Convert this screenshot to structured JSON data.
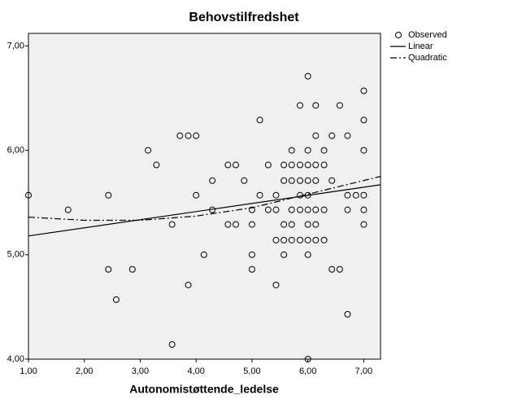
{
  "chart_data": {
    "type": "scatter",
    "title": "Behovstilfredshet",
    "x_label": "Autonomistøttende_ledelse",
    "xlim": [
      1,
      7.3
    ],
    "ylim": [
      4,
      7.12
    ],
    "xticks": [
      {
        "value": 1,
        "label": "1,00"
      },
      {
        "value": 2,
        "label": "2,00"
      },
      {
        "value": 3,
        "label": "3,00"
      },
      {
        "value": 4,
        "label": "4,00"
      },
      {
        "value": 5,
        "label": "5,00"
      },
      {
        "value": 6,
        "label": "6,00"
      },
      {
        "value": 7,
        "label": "7,00"
      }
    ],
    "yticks": [
      {
        "value": 4,
        "label": "4,00"
      },
      {
        "value": 5,
        "label": "5,00"
      },
      {
        "value": 6,
        "label": "6,00"
      },
      {
        "value": 7,
        "label": "7,00"
      }
    ],
    "plot_background": "#f0f0f0",
    "legend": "right",
    "series": [
      {
        "name": "Observed",
        "type": "scatter",
        "color": "#000000",
        "x": [
          1.0,
          1.71,
          2.43,
          2.43,
          2.57,
          2.86,
          3.14,
          3.29,
          3.71,
          3.86,
          4.0,
          4.0,
          3.57,
          3.57,
          3.86,
          4.14,
          4.29,
          4.29,
          4.57,
          4.71,
          4.57,
          4.71,
          4.86,
          5.0,
          5.0,
          5.0,
          5.0,
          5.14,
          5.14,
          5.29,
          5.29,
          5.43,
          5.43,
          5.43,
          5.43,
          5.57,
          5.57,
          5.57,
          5.57,
          5.57,
          5.71,
          5.71,
          5.71,
          5.71,
          5.71,
          5.71,
          5.86,
          5.86,
          5.86,
          5.86,
          5.86,
          5.86,
          6.0,
          6.0,
          6.0,
          6.0,
          6.0,
          6.0,
          6.0,
          6.0,
          6.0,
          6.0,
          6.14,
          6.14,
          6.14,
          6.14,
          6.14,
          6.14,
          6.14,
          6.29,
          6.29,
          6.29,
          6.29,
          6.43,
          6.43,
          6.43,
          6.57,
          6.57,
          6.71,
          6.71,
          6.71,
          6.71,
          6.86,
          7.0,
          7.0,
          7.0,
          7.0,
          7.0,
          7.0
        ],
        "values": [
          5.57,
          5.43,
          5.57,
          4.86,
          4.57,
          4.86,
          6.0,
          5.86,
          6.14,
          6.14,
          6.14,
          5.57,
          5.29,
          4.14,
          4.71,
          5.0,
          5.71,
          5.43,
          5.86,
          5.86,
          5.29,
          5.29,
          5.71,
          5.43,
          5.29,
          5.0,
          4.86,
          6.29,
          5.57,
          5.86,
          5.43,
          5.57,
          5.43,
          5.14,
          4.71,
          5.86,
          5.71,
          5.29,
          5.14,
          5.0,
          6.0,
          5.86,
          5.71,
          5.43,
          5.29,
          5.14,
          6.43,
          5.86,
          5.71,
          5.57,
          5.43,
          5.14,
          6.71,
          6.0,
          5.86,
          5.71,
          5.57,
          5.43,
          5.29,
          5.14,
          5.0,
          4.0,
          6.43,
          6.14,
          5.86,
          5.71,
          5.43,
          5.29,
          5.14,
          6.0,
          5.86,
          5.43,
          5.14,
          6.14,
          5.71,
          4.86,
          6.43,
          4.86,
          6.14,
          5.57,
          5.43,
          4.43,
          5.57,
          6.57,
          6.29,
          6.0,
          5.57,
          5.43,
          5.29
        ]
      },
      {
        "name": "Linear",
        "type": "line",
        "line_style": "solid",
        "color": "#000000",
        "x": [
          1,
          7.3
        ],
        "values": [
          5.18,
          5.67
        ]
      },
      {
        "name": "Quadratic",
        "type": "line",
        "line_style": "dashdot",
        "color": "#000000",
        "x": [
          1,
          2,
          3,
          4,
          5,
          6,
          7.3
        ],
        "values": [
          5.36,
          5.33,
          5.33,
          5.37,
          5.45,
          5.58,
          5.75
        ]
      }
    ]
  }
}
